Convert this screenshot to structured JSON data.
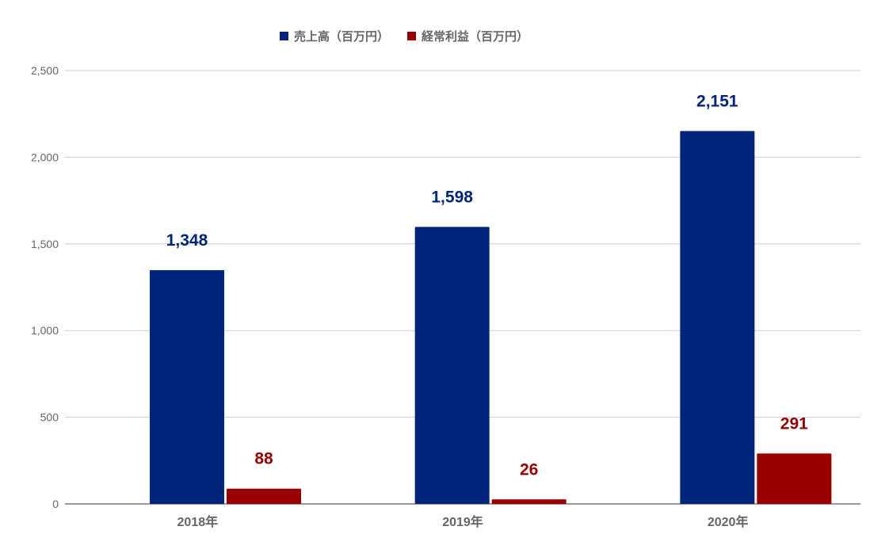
{
  "chart_data": {
    "type": "bar",
    "categories": [
      "2018年",
      "2019年",
      "2020年"
    ],
    "series": [
      {
        "name": "売上高（百万円）",
        "color": "#002479",
        "values": [
          1348,
          1598,
          2151
        ],
        "labels": [
          "1,348",
          "1,598",
          "2,151"
        ]
      },
      {
        "name": "経常利益（百万円）",
        "color": "#990000",
        "values": [
          88,
          26,
          291
        ],
        "labels": [
          "88",
          "26",
          "291"
        ]
      }
    ],
    "ylim": [
      0,
      2500
    ],
    "yticks": [
      0,
      500,
      1000,
      1500,
      2000,
      2500
    ],
    "ytick_labels": [
      "0",
      "500",
      "1,000",
      "1,500",
      "2,000",
      "2,500"
    ],
    "grid": true,
    "legend_position": "top-center",
    "title": "",
    "xlabel": "",
    "ylabel": ""
  }
}
